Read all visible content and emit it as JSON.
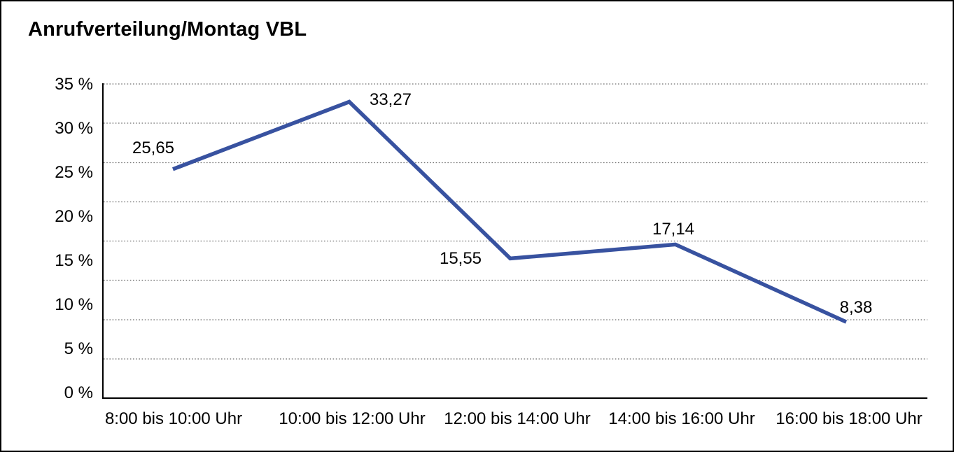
{
  "title": "Anrufverteilung/Montag VBL",
  "chart_data": {
    "type": "line",
    "title": "Anrufverteilung/Montag VBL",
    "categories": [
      "8:00 bis 10:00 Uhr",
      "10:00 bis 12:00 Uhr",
      "12:00 bis 14:00 Uhr",
      "14:00 bis 16:00 Uhr",
      "16:00 bis 18:00 Uhr"
    ],
    "series": [
      {
        "name": "Anrufverteilung Montag VBL",
        "values": [
          25.65,
          33.27,
          15.55,
          17.14,
          8.38
        ]
      }
    ],
    "value_labels": [
      "25,65",
      "33,27",
      "15,55",
      "17,14",
      "8,38"
    ],
    "y_ticks": [
      "35 %",
      "30 %",
      "25 %",
      "20 %",
      "15 %",
      "10 %",
      "5 %",
      "0 %"
    ],
    "xlabel": "",
    "ylabel": "",
    "ylim": [
      0,
      35
    ],
    "y_unit": "%",
    "grid": "horizontal-dotted",
    "legend_position": "none",
    "line_color": "#3852A0",
    "gridline_color": "#6e6e6e",
    "axis_color": "#000000"
  }
}
